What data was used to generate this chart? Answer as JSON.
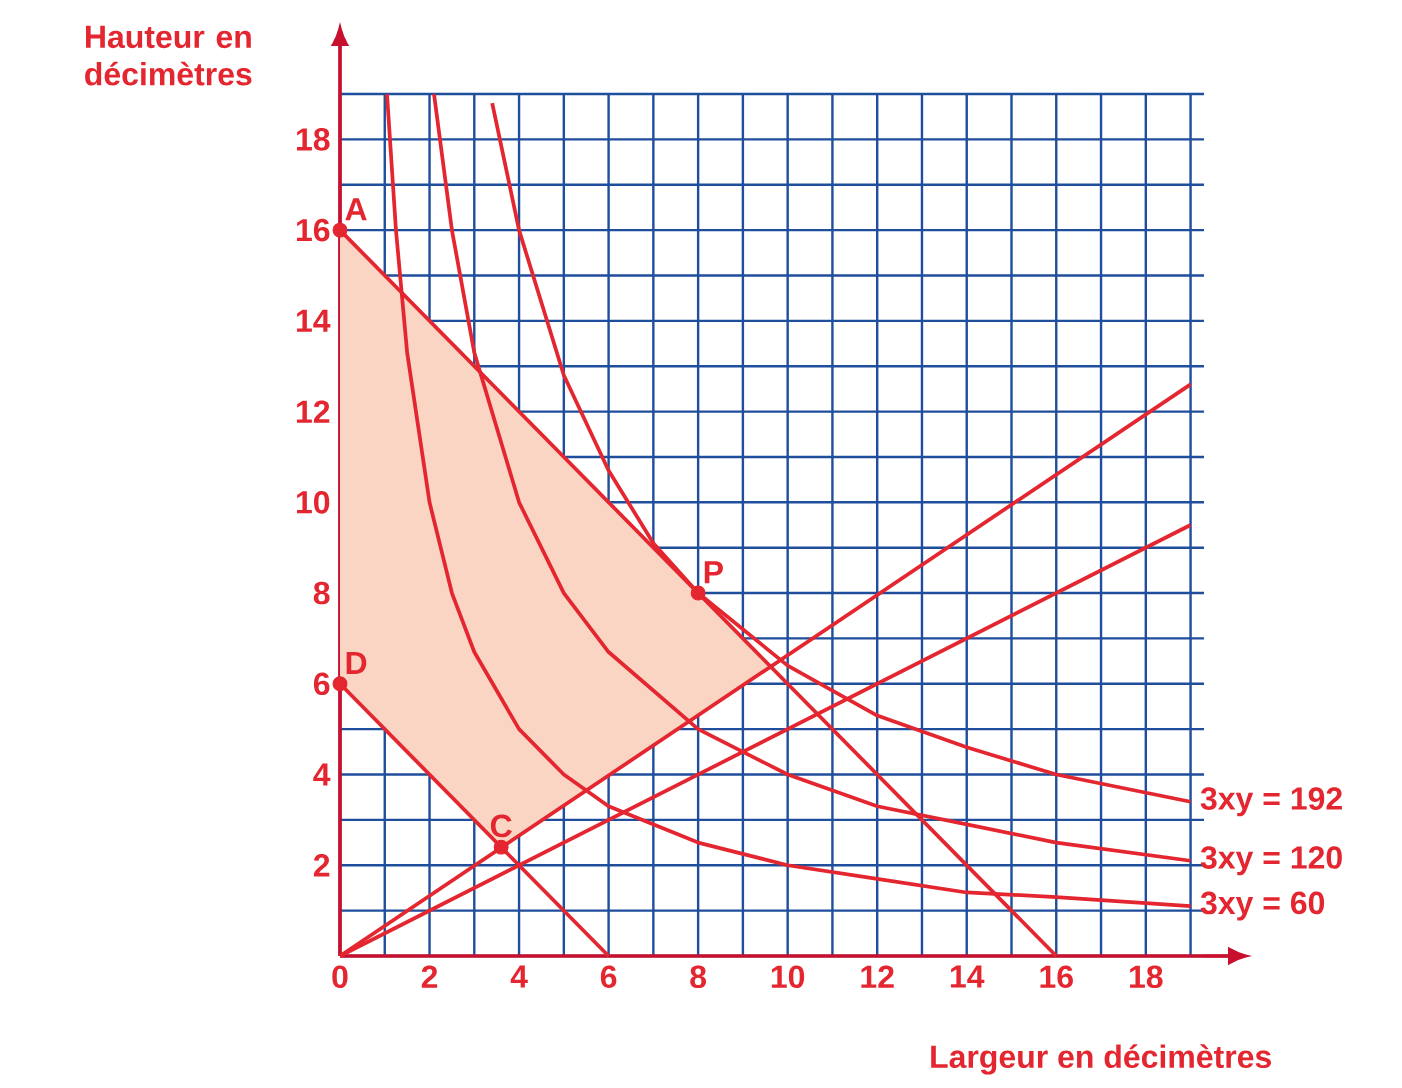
{
  "chart_data": {
    "type": "line",
    "xlabel": "Largeur en décimètres",
    "ylabel": "Hauteur en décimètres",
    "xlim": [
      0,
      19.3
    ],
    "ylim": [
      0,
      19
    ],
    "grid": true,
    "marker": "none",
    "xticks": [
      0,
      {
        "value": 1,
        "label": null
      },
      2,
      {
        "value": 3,
        "label": null
      },
      4,
      {
        "value": 5,
        "label": null
      },
      6,
      {
        "value": 7,
        "label": null
      },
      8,
      {
        "value": 9,
        "label": null
      },
      10,
      {
        "value": 11,
        "label": null
      },
      12,
      {
        "value": 13,
        "label": null
      },
      14,
      {
        "value": 15,
        "label": null
      },
      16,
      {
        "value": 17,
        "label": null
      },
      18,
      {
        "value": 19,
        "label": null
      }
    ],
    "yticks": [
      {
        "value": 0,
        "label": null
      },
      {
        "value": 1,
        "label": null
      },
      2,
      {
        "value": 3,
        "label": null
      },
      4,
      {
        "value": 5,
        "label": null
      },
      6,
      {
        "value": 7,
        "label": null
      },
      8,
      {
        "value": 9,
        "label": null
      },
      10,
      {
        "value": 11,
        "label": null
      },
      12,
      {
        "value": 13,
        "label": null
      },
      14,
      {
        "value": 15,
        "label": null
      },
      16,
      {
        "value": 17,
        "label": null
      },
      18,
      {
        "value": 19,
        "label": null
      }
    ],
    "series": [
      {
        "type": "area",
        "color": "#fbd5c3",
        "x": [
          0,
          9.6,
          3.6,
          0
        ],
        "values": [
          16,
          6.4,
          2.4,
          6
        ]
      },
      {
        "color": "#e3262f",
        "x": [
          0,
          16
        ],
        "values": [
          16,
          0
        ]
      },
      {
        "color": "#e3262f",
        "x": [
          0,
          6
        ],
        "values": [
          6,
          0
        ]
      },
      {
        "color": "#e3262f",
        "x": [
          0,
          19
        ],
        "values": [
          0,
          12.6
        ]
      },
      {
        "color": "#e3262f",
        "x": [
          0,
          19
        ],
        "values": [
          0,
          9.5
        ]
      },
      {
        "name": "3xy = 60",
        "color": "#e3262f",
        "x": [
          1.05,
          1.25,
          1.5,
          2,
          2.5,
          3,
          4,
          5,
          6,
          8,
          10,
          12,
          14,
          16,
          19
        ],
        "values": [
          19,
          16,
          13.3,
          10,
          8,
          6.7,
          5,
          4,
          3.3,
          2.5,
          2,
          1.7,
          1.4,
          1.3,
          1.1
        ]
      },
      {
        "name": "3xy = 120",
        "color": "#e3262f",
        "x": [
          2.1,
          2.5,
          3,
          4,
          5,
          6,
          8,
          10,
          12,
          14,
          16,
          19
        ],
        "values": [
          19,
          16,
          13.3,
          10,
          8,
          6.7,
          5,
          4,
          3.3,
          2.9,
          2.5,
          2.1
        ]
      },
      {
        "name": "3xy = 192",
        "color": "#e3262f",
        "x": [
          3.4,
          4,
          5,
          6,
          7,
          8,
          10,
          12,
          14,
          16,
          19
        ],
        "values": [
          18.8,
          16,
          12.8,
          10.7,
          9.1,
          8,
          6.4,
          5.3,
          4.6,
          4,
          3.4
        ]
      },
      {
        "type": "scatter",
        "marker": "circle",
        "color": "#e3262f",
        "x": [
          0,
          8,
          3.6,
          0
        ],
        "values": [
          16,
          8,
          2.4,
          6
        ]
      }
    ],
    "annotations": [
      {
        "text": "A",
        "x": 0,
        "y": 16
      },
      {
        "text": "P",
        "x": 8,
        "y": 8
      },
      {
        "text": "C",
        "x": 3.6,
        "y": 2.4
      },
      {
        "text": "D",
        "x": 0,
        "y": 6
      }
    ]
  }
}
